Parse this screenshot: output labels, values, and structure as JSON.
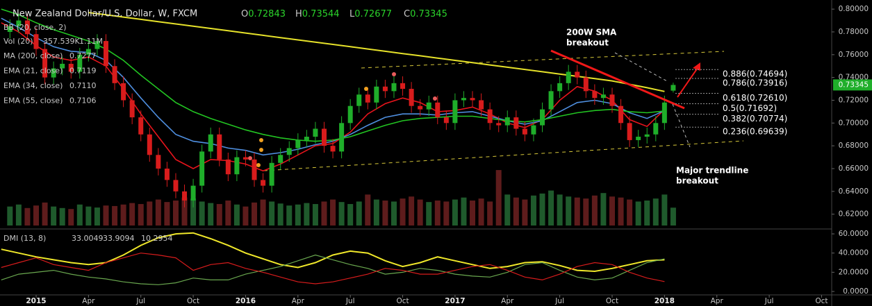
{
  "chart_data": {
    "type": "candlestick",
    "title": "New Zealand Dollar/U.S. Dollar, W, FXCM",
    "ohlc_header": [
      {
        "label": "O",
        "value": 0.72843
      },
      {
        "label": "H",
        "value": 0.73544
      },
      {
        "label": "L",
        "value": 0.72677
      },
      {
        "label": "C",
        "value": 0.73345
      }
    ],
    "last_price": 0.73345,
    "up_color": "#1fae2a",
    "down_color": "#d81c1c",
    "x": [
      -1.5,
      -1,
      -0.5,
      0,
      0.5,
      1,
      1.5,
      2,
      2.5,
      3,
      3.5,
      4,
      4.5,
      5,
      5.5,
      6,
      6.5,
      7,
      7.5,
      8,
      8.5,
      9,
      9.5,
      10,
      10.5,
      11,
      11.5,
      12,
      12.5,
      13,
      13.5,
      14,
      14.5,
      15,
      15.5,
      16,
      16.5,
      17,
      17.5,
      18,
      18.5,
      19,
      19.5,
      20,
      20.5,
      21,
      21.5,
      22,
      22.5,
      23,
      23.5,
      24,
      24.5,
      25,
      25.5,
      26,
      26.5,
      27,
      27.5,
      28,
      28.5,
      29,
      29.5,
      30,
      30.5,
      31,
      31.5,
      32,
      32.5,
      33,
      33.5,
      34,
      34.5,
      35,
      35.5,
      36,
      36.5
    ],
    "open": [
      0.78,
      0.785,
      0.79,
      0.778,
      0.765,
      0.74,
      0.748,
      0.752,
      0.745,
      0.76,
      0.765,
      0.772,
      0.75,
      0.735,
      0.72,
      0.705,
      0.69,
      0.672,
      0.66,
      0.65,
      0.64,
      0.632,
      0.645,
      0.675,
      0.69,
      0.668,
      0.655,
      0.67,
      0.668,
      0.65,
      0.645,
      0.665,
      0.672,
      0.678,
      0.685,
      0.688,
      0.695,
      0.68,
      0.675,
      0.7,
      0.715,
      0.725,
      0.718,
      0.732,
      0.728,
      0.735,
      0.73,
      0.715,
      0.712,
      0.718,
      0.705,
      0.7,
      0.72,
      0.722,
      0.72,
      0.712,
      0.7,
      0.698,
      0.705,
      0.695,
      0.69,
      0.698,
      0.712,
      0.728,
      0.735,
      0.745,
      0.74,
      0.728,
      0.722,
      0.725,
      0.715,
      0.7,
      0.685,
      0.688,
      0.69,
      0.7,
      0.72843
    ],
    "high": [
      0.791,
      0.796,
      0.796,
      0.784,
      0.771,
      0.754,
      0.758,
      0.758,
      0.766,
      0.771,
      0.778,
      0.778,
      0.756,
      0.741,
      0.726,
      0.711,
      0.696,
      0.678,
      0.666,
      0.656,
      0.646,
      0.651,
      0.681,
      0.696,
      0.696,
      0.674,
      0.676,
      0.676,
      0.674,
      0.656,
      0.671,
      0.678,
      0.684,
      0.691,
      0.694,
      0.701,
      0.701,
      0.686,
      0.706,
      0.721,
      0.731,
      0.731,
      0.738,
      0.738,
      0.741,
      0.741,
      0.736,
      0.721,
      0.724,
      0.724,
      0.711,
      0.726,
      0.728,
      0.728,
      0.726,
      0.718,
      0.706,
      0.711,
      0.711,
      0.701,
      0.704,
      0.718,
      0.734,
      0.741,
      0.751,
      0.751,
      0.746,
      0.734,
      0.731,
      0.731,
      0.721,
      0.706,
      0.694,
      0.696,
      0.706,
      0.724,
      0.73544
    ],
    "low": [
      0.774,
      0.779,
      0.772,
      0.759,
      0.734,
      0.734,
      0.742,
      0.739,
      0.739,
      0.754,
      0.759,
      0.744,
      0.729,
      0.714,
      0.699,
      0.684,
      0.666,
      0.654,
      0.644,
      0.634,
      0.626,
      0.626,
      0.639,
      0.669,
      0.662,
      0.649,
      0.649,
      0.662,
      0.644,
      0.639,
      0.639,
      0.659,
      0.666,
      0.672,
      0.679,
      0.682,
      0.674,
      0.669,
      0.669,
      0.694,
      0.709,
      0.712,
      0.712,
      0.722,
      0.722,
      0.724,
      0.709,
      0.706,
      0.706,
      0.699,
      0.694,
      0.694,
      0.714,
      0.714,
      0.706,
      0.694,
      0.692,
      0.692,
      0.689,
      0.684,
      0.684,
      0.692,
      0.706,
      0.722,
      0.729,
      0.734,
      0.722,
      0.716,
      0.716,
      0.709,
      0.694,
      0.679,
      0.679,
      0.682,
      0.684,
      0.694,
      0.72677
    ],
    "close": [
      0.785,
      0.79,
      0.778,
      0.765,
      0.74,
      0.748,
      0.752,
      0.745,
      0.76,
      0.765,
      0.772,
      0.75,
      0.735,
      0.72,
      0.705,
      0.69,
      0.672,
      0.66,
      0.65,
      0.64,
      0.632,
      0.645,
      0.675,
      0.69,
      0.668,
      0.655,
      0.67,
      0.668,
      0.65,
      0.645,
      0.665,
      0.672,
      0.678,
      0.685,
      0.688,
      0.695,
      0.68,
      0.675,
      0.7,
      0.715,
      0.725,
      0.718,
      0.732,
      0.728,
      0.735,
      0.73,
      0.715,
      0.712,
      0.718,
      0.705,
      0.7,
      0.72,
      0.722,
      0.72,
      0.712,
      0.7,
      0.698,
      0.705,
      0.695,
      0.69,
      0.698,
      0.712,
      0.728,
      0.735,
      0.745,
      0.74,
      0.728,
      0.722,
      0.725,
      0.715,
      0.7,
      0.685,
      0.688,
      0.69,
      0.7,
      0.718,
      0.73345
    ],
    "xlim": [
      -2.07,
      45.5
    ],
    "xticks": [
      {
        "value": 0,
        "label": "2015"
      },
      {
        "value": 3,
        "label": "Apr"
      },
      {
        "value": 6,
        "label": "Jul"
      },
      {
        "value": 9,
        "label": "Oct"
      },
      {
        "value": 12,
        "label": "2016"
      },
      {
        "value": 15,
        "label": "Apr"
      },
      {
        "value": 18,
        "label": "Jul"
      },
      {
        "value": 21,
        "label": "Oct"
      },
      {
        "value": 24,
        "label": "2017"
      },
      {
        "value": 27,
        "label": "Apr"
      },
      {
        "value": 30,
        "label": "Jul"
      },
      {
        "value": 33,
        "label": "Oct"
      },
      {
        "value": 36,
        "label": "2018"
      },
      {
        "value": 39,
        "label": "Apr"
      },
      {
        "value": 42,
        "label": "Jul"
      },
      {
        "value": 45,
        "label": "Oct"
      }
    ],
    "ylim": [
      0.607,
      0.808
    ],
    "yticks": [
      {
        "value": 0.62,
        "label": "0.62000"
      },
      {
        "value": 0.64,
        "label": "0.64000"
      },
      {
        "value": 0.66,
        "label": "0.66000"
      },
      {
        "value": 0.68,
        "label": "0.68000"
      },
      {
        "value": 0.7,
        "label": "0.70000"
      },
      {
        "value": 0.72,
        "label": "0.72000"
      },
      {
        "value": 0.74,
        "label": "0.74000"
      },
      {
        "value": 0.76,
        "label": "0.76000"
      },
      {
        "value": 0.78,
        "label": "0.78000"
      },
      {
        "value": 0.8,
        "label": "0.80000"
      }
    ],
    "bb_legend": "BB (20, close, 2)",
    "line_x": [
      -2,
      -1,
      0,
      1,
      2,
      3,
      4,
      5,
      6,
      7,
      8,
      9,
      10,
      11,
      12,
      13,
      14,
      15,
      16,
      17,
      18,
      19,
      20,
      21,
      22,
      23,
      24,
      25,
      26,
      27,
      28,
      29,
      30,
      31,
      32,
      33,
      34,
      35,
      36
    ],
    "indicators": [
      {
        "name": "MA (200, close)",
        "value_label": "0.7277",
        "color": "#e6e22a",
        "values": [
          null,
          null,
          null,
          null,
          null,
          0.797,
          0.795,
          0.793,
          0.791,
          0.789,
          0.787,
          0.785,
          0.783,
          0.781,
          0.779,
          0.777,
          0.775,
          0.773,
          0.771,
          0.769,
          0.767,
          0.765,
          0.763,
          0.761,
          0.759,
          0.757,
          0.755,
          0.753,
          0.751,
          0.749,
          0.747,
          0.745,
          0.743,
          0.741,
          0.739,
          0.737,
          0.734,
          0.731,
          0.7277
        ]
      },
      {
        "name": "EMA (21, close)",
        "value_label": "0.7119",
        "color": "#e8141c",
        "values": [
          0.788,
          0.78,
          0.768,
          0.758,
          0.755,
          0.758,
          0.75,
          0.73,
          0.708,
          0.688,
          0.668,
          0.66,
          0.668,
          0.667,
          0.664,
          0.658,
          0.664,
          0.672,
          0.68,
          0.682,
          0.692,
          0.708,
          0.717,
          0.722,
          0.718,
          0.71,
          0.711,
          0.714,
          0.708,
          0.7,
          0.696,
          0.703,
          0.72,
          0.732,
          0.728,
          0.72,
          0.703,
          0.697,
          0.7119
        ]
      },
      {
        "name": "EMA (34, close)",
        "value_label": "0.7110",
        "color": "#4f8fe0",
        "values": [
          0.792,
          0.784,
          0.775,
          0.767,
          0.763,
          0.762,
          0.755,
          0.74,
          0.722,
          0.705,
          0.69,
          0.684,
          0.682,
          0.678,
          0.676,
          0.672,
          0.674,
          0.677,
          0.681,
          0.684,
          0.69,
          0.698,
          0.705,
          0.708,
          0.708,
          0.707,
          0.709,
          0.71,
          0.706,
          0.702,
          0.699,
          0.702,
          0.71,
          0.718,
          0.72,
          0.717,
          0.709,
          0.704,
          0.711
        ]
      },
      {
        "name": "EMA (55, close)",
        "value_label": "0.7106",
        "color": "#22c422",
        "values": [
          0.8,
          0.795,
          0.788,
          0.782,
          0.777,
          0.772,
          0.765,
          0.755,
          0.742,
          0.73,
          0.718,
          0.71,
          0.704,
          0.699,
          0.694,
          0.69,
          0.687,
          0.685,
          0.684,
          0.685,
          0.688,
          0.693,
          0.698,
          0.702,
          0.704,
          0.705,
          0.706,
          0.706,
          0.704,
          0.702,
          0.701,
          0.703,
          0.706,
          0.709,
          0.711,
          0.712,
          0.71,
          0.709,
          0.7106
        ]
      }
    ],
    "volume": {
      "name": "Vol (20)",
      "labels": [
        "357.539K",
        "1.11M"
      ],
      "lim": [
        0,
        1500
      ],
      "values": [
        380,
        420,
        350,
        400,
        460,
        380,
        350,
        330,
        420,
        380,
        360,
        400,
        390,
        420,
        450,
        430,
        480,
        520,
        470,
        500,
        560,
        540,
        480,
        450,
        430,
        500,
        420,
        380,
        460,
        520,
        480,
        440,
        400,
        420,
        450,
        430,
        480,
        520,
        470,
        430,
        480,
        620,
        520,
        500,
        480,
        540,
        580,
        520,
        470,
        500,
        480,
        520,
        560,
        500,
        540,
        480,
        1110,
        620,
        560,
        520,
        600,
        640,
        700,
        620,
        580,
        560,
        540,
        600,
        650,
        580,
        560,
        520,
        480,
        500,
        540,
        620,
        357.539
      ]
    },
    "fib_levels": [
      {
        "value": 0.74694,
        "label": "0.886(0.74694)"
      },
      {
        "value": 0.73916,
        "label": "0.786(0.73916)"
      },
      {
        "value": 0.7261,
        "label": "0.618(0.72610)"
      },
      {
        "value": 0.71692,
        "label": "0.5(0.71692)"
      },
      {
        "value": 0.70774,
        "label": "0.382(0.70774)"
      },
      {
        "value": 0.69639,
        "label": "0.236(0.69639)"
      }
    ],
    "annotations": [
      [
        "200W SMA",
        "breakout"
      ],
      [
        "Major trendline",
        "breakout"
      ]
    ],
    "dmi": {
      "title": "DMI (13, 8)",
      "ylim": [
        -3.6,
        65.1
      ],
      "yticks": [
        {
          "value": 0,
          "label": "0.0000"
        },
        {
          "value": 20,
          "label": "20.0000"
        },
        {
          "value": 40,
          "label": "40.0000"
        },
        {
          "value": 60,
          "label": "60.0000"
        }
      ],
      "series": [
        {
          "value_label": "33.0049",
          "color": "#f0e82a",
          "values": [
            44,
            40,
            36,
            33,
            30,
            28,
            30,
            38,
            48,
            56,
            60,
            61,
            55,
            48,
            40,
            34,
            28,
            25,
            30,
            38,
            42,
            40,
            32,
            26,
            30,
            36,
            32,
            28,
            24,
            26,
            30,
            31,
            27,
            22,
            21,
            24,
            28,
            32,
            33.0049
          ]
        },
        {
          "value_label": "33.9094",
          "color": "#6aa84f",
          "values": [
            12,
            18,
            20,
            22,
            18,
            15,
            13,
            10,
            8,
            7,
            9,
            14,
            12,
            12,
            18,
            22,
            26,
            32,
            38,
            33,
            28,
            24,
            18,
            20,
            24,
            22,
            18,
            16,
            15,
            20,
            28,
            30,
            22,
            15,
            12,
            14,
            22,
            30,
            33.9094
          ]
        },
        {
          "value_label": "10.2954",
          "color": "#d81c1c",
          "values": [
            25,
            30,
            35,
            28,
            25,
            22,
            30,
            35,
            40,
            38,
            35,
            22,
            28,
            30,
            24,
            20,
            15,
            10,
            8,
            10,
            14,
            18,
            24,
            22,
            18,
            18,
            22,
            26,
            28,
            22,
            15,
            12,
            18,
            26,
            30,
            28,
            20,
            14,
            10.2954
          ]
        }
      ]
    }
  }
}
